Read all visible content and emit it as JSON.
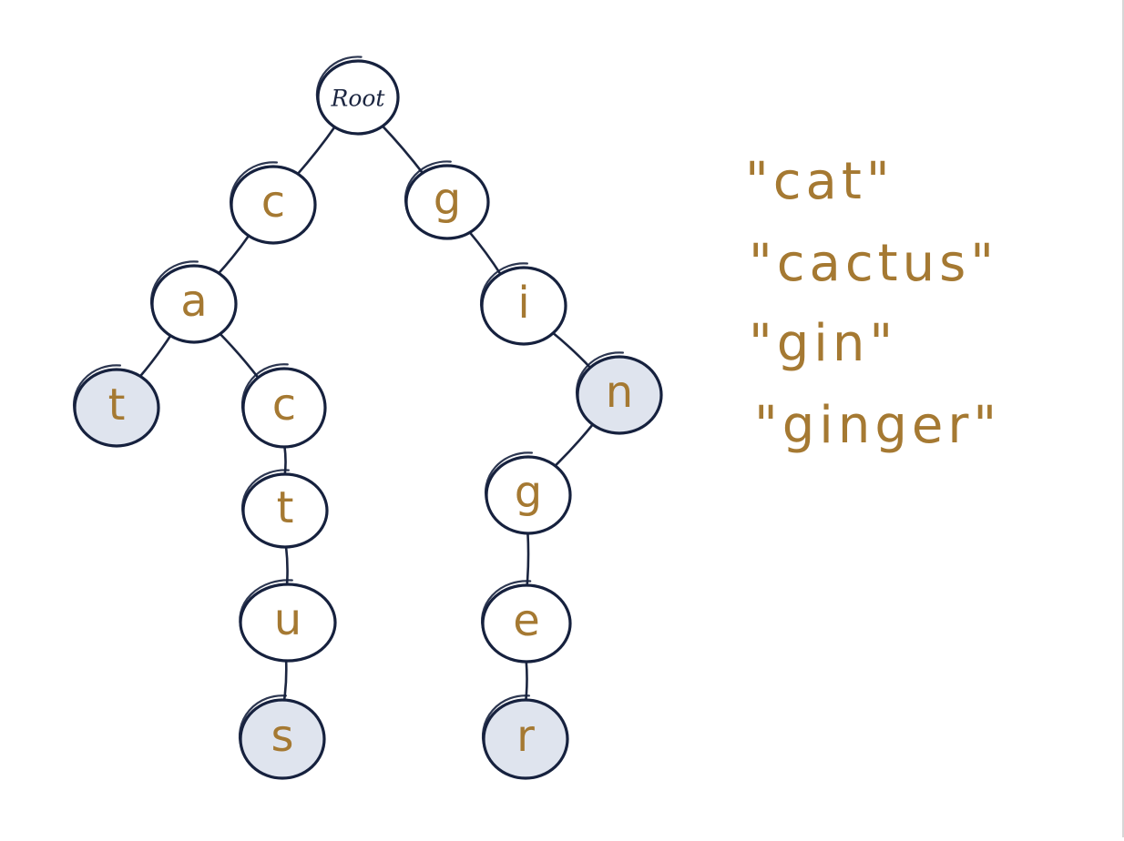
{
  "colors": {
    "ink": "#16213e",
    "letter": "#a57932",
    "terminal_fill": "#dfe4ee",
    "background": "#ffffff"
  },
  "tree": {
    "nodes": [
      {
        "id": "root",
        "label": "Root",
        "terminal": false
      },
      {
        "id": "c1",
        "label": "c",
        "terminal": false
      },
      {
        "id": "g1",
        "label": "g",
        "terminal": false
      },
      {
        "id": "a",
        "label": "a",
        "terminal": false
      },
      {
        "id": "i",
        "label": "i",
        "terminal": false
      },
      {
        "id": "t1",
        "label": "t",
        "terminal": true
      },
      {
        "id": "c2",
        "label": "c",
        "terminal": false
      },
      {
        "id": "n",
        "label": "n",
        "terminal": true
      },
      {
        "id": "t2",
        "label": "t",
        "terminal": false
      },
      {
        "id": "g2",
        "label": "g",
        "terminal": false
      },
      {
        "id": "u",
        "label": "u",
        "terminal": false
      },
      {
        "id": "e",
        "label": "e",
        "terminal": false
      },
      {
        "id": "s",
        "label": "s",
        "terminal": true
      },
      {
        "id": "r",
        "label": "r",
        "terminal": true
      }
    ],
    "edges": [
      [
        "root",
        "c1"
      ],
      [
        "root",
        "g1"
      ],
      [
        "c1",
        "a"
      ],
      [
        "a",
        "t1"
      ],
      [
        "a",
        "c2"
      ],
      [
        "c2",
        "t2"
      ],
      [
        "t2",
        "u"
      ],
      [
        "u",
        "s"
      ],
      [
        "g1",
        "i"
      ],
      [
        "i",
        "n"
      ],
      [
        "n",
        "g2"
      ],
      [
        "g2",
        "e"
      ],
      [
        "e",
        "r"
      ]
    ]
  },
  "words": [
    "\"cat\"",
    "\"cactus\"",
    "\"gin\"",
    "\"ginger\""
  ]
}
